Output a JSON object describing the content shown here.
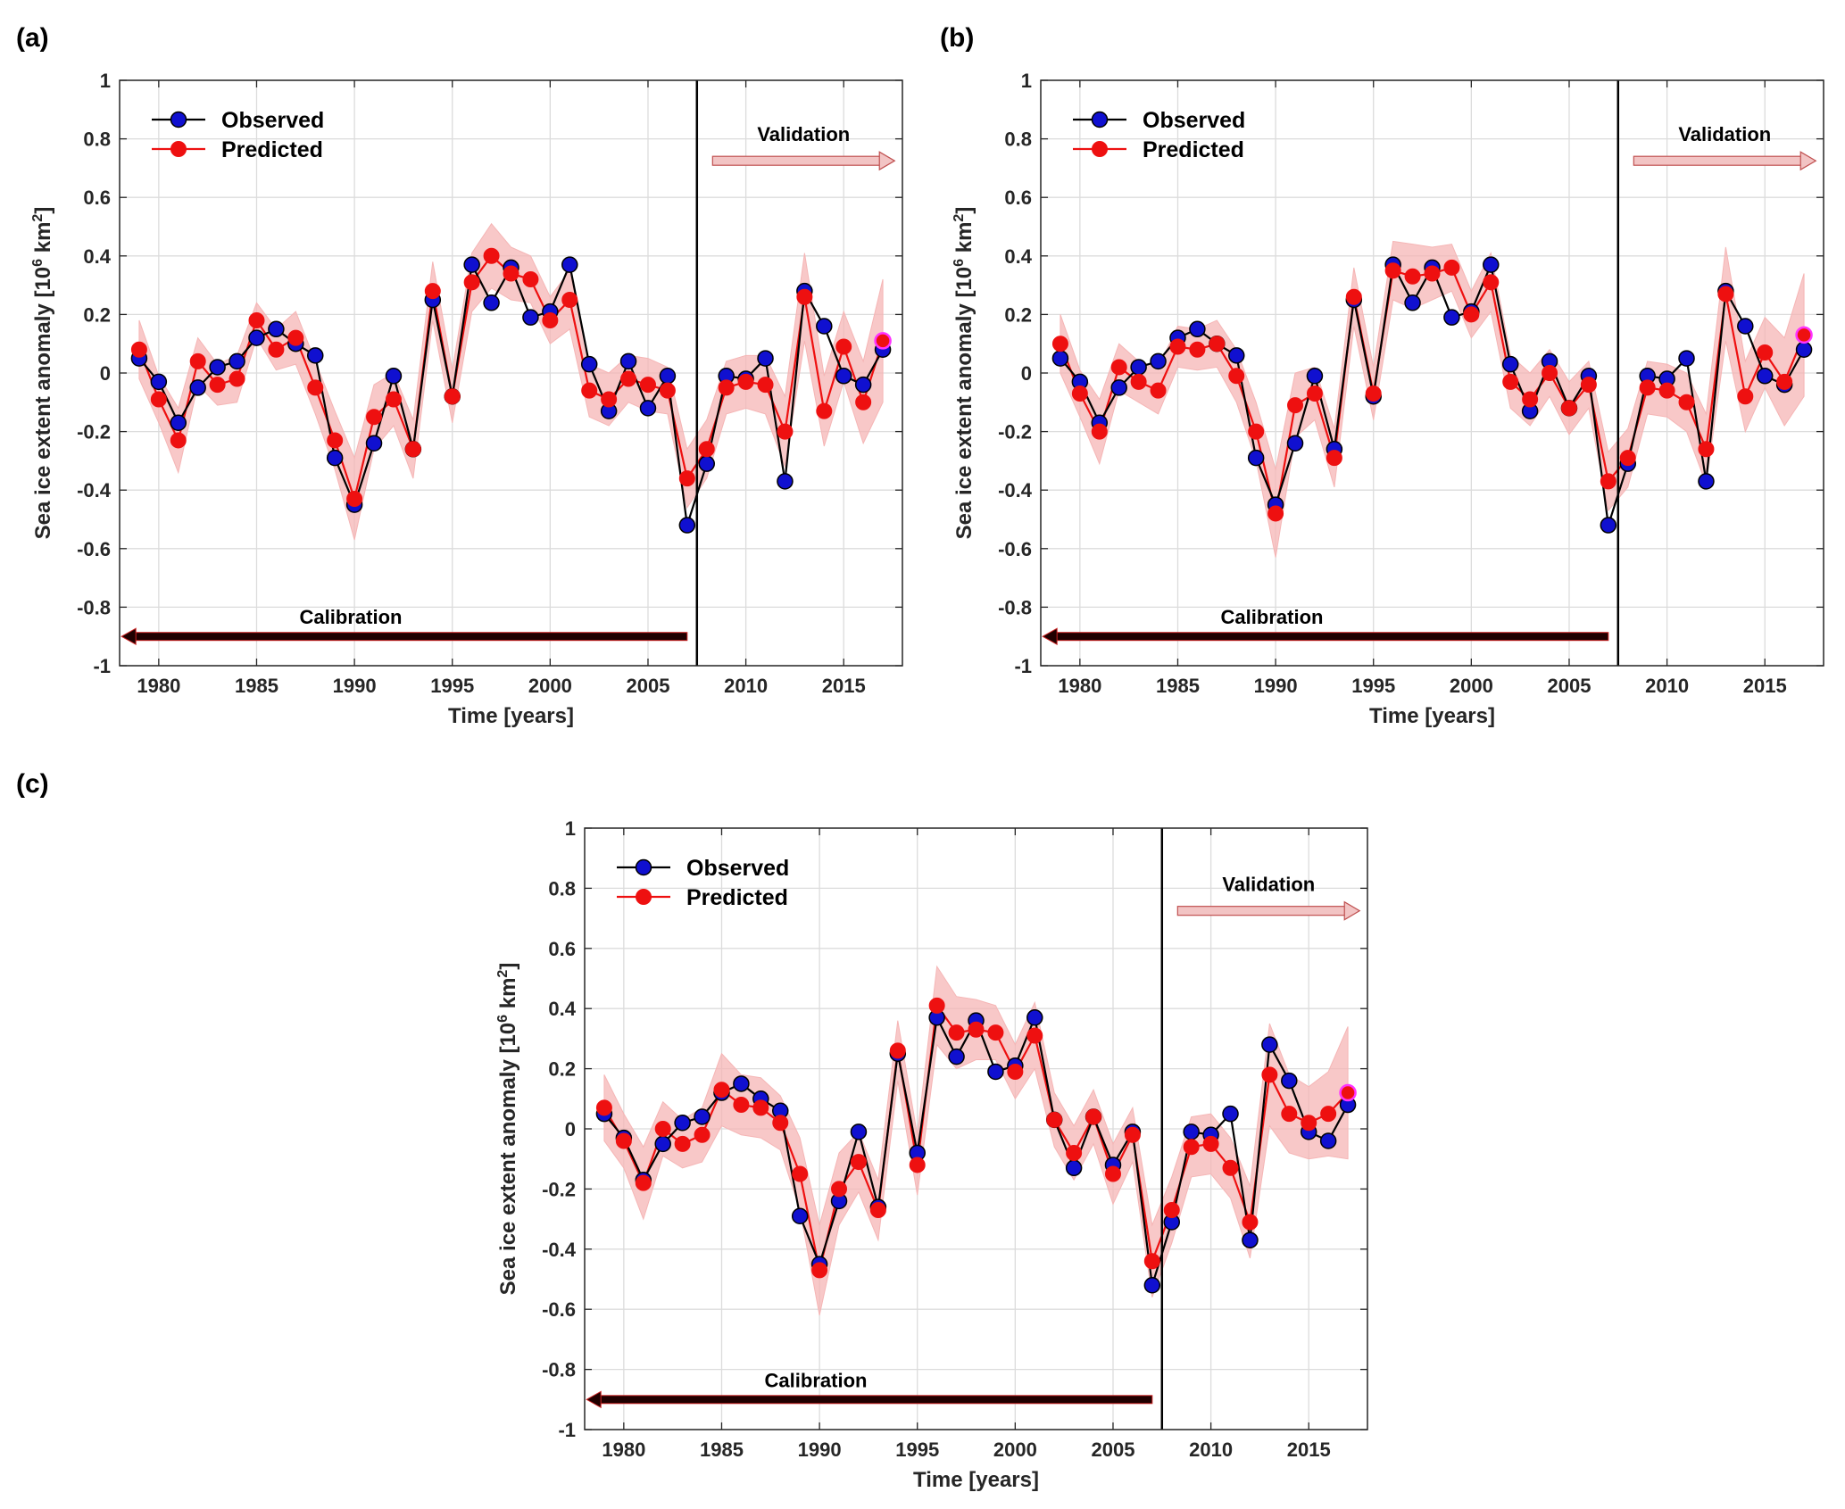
{
  "colors": {
    "observed_marker": "#1010d0",
    "observed_line": "#000000",
    "predicted": "#ee1010",
    "band": "#f5b5b5",
    "arrow_calibration": "#200000",
    "arrow_validation": "#f2c4c4",
    "last_point_ring": "#ff33ff"
  },
  "chart_data": [
    {
      "panel": "(a)",
      "type": "line",
      "xlabel": "Time [years]",
      "ylabel": "Sea ice extent anomaly [10",
      "ylabel_sup": "6",
      "ylabel_unit": " km",
      "ylabel_sup2": "2",
      "ylabel_end": "]",
      "xlim": [
        1978,
        2018
      ],
      "ylim": [
        -1,
        1
      ],
      "xticks": [
        1980,
        1985,
        1990,
        1995,
        2000,
        2005,
        2010,
        2015
      ],
      "yticks": [
        1,
        0.8,
        0.6,
        0.4,
        0.2,
        0,
        -0.2,
        -0.4,
        -0.6,
        -0.8,
        -1
      ],
      "ytick_labels": [
        "1",
        "0.8",
        "0.6",
        "0.4",
        "0.2",
        "0",
        "-0.2",
        "-0.4",
        "-0.6",
        "-0.8",
        "-1"
      ],
      "grid": true,
      "legend": {
        "position": "top-left",
        "observed": "Observed",
        "predicted": "Predicted"
      },
      "split_year": 2007.5,
      "calibration_label": "Calibration",
      "validation_label": "Validation",
      "x": [
        1979,
        1980,
        1981,
        1982,
        1983,
        1984,
        1985,
        1986,
        1987,
        1988,
        1989,
        1990,
        1991,
        1992,
        1993,
        1994,
        1995,
        1996,
        1997,
        1998,
        1999,
        2000,
        2001,
        2002,
        2003,
        2004,
        2005,
        2006,
        2007,
        2008,
        2009,
        2010,
        2011,
        2012,
        2013,
        2014,
        2015,
        2016,
        2017
      ],
      "series": [
        {
          "name": "Observed",
          "values": [
            0.05,
            -0.03,
            -0.17,
            -0.05,
            0.02,
            0.04,
            0.12,
            0.15,
            0.1,
            0.06,
            -0.29,
            -0.45,
            -0.24,
            -0.01,
            -0.26,
            0.25,
            -0.08,
            0.37,
            0.24,
            0.36,
            0.19,
            0.21,
            0.37,
            0.03,
            -0.13,
            0.04,
            -0.12,
            -0.01,
            -0.52,
            -0.31,
            -0.01,
            -0.02,
            0.05,
            -0.37,
            0.28,
            0.16,
            -0.01,
            -0.04,
            0.08
          ]
        },
        {
          "name": "Predicted",
          "values": [
            0.08,
            -0.09,
            -0.23,
            0.04,
            -0.04,
            -0.02,
            0.18,
            0.08,
            0.12,
            -0.05,
            -0.23,
            -0.43,
            -0.15,
            -0.09,
            -0.26,
            0.28,
            -0.08,
            0.31,
            0.4,
            0.34,
            0.32,
            0.18,
            0.25,
            -0.06,
            -0.09,
            -0.02,
            -0.04,
            -0.06,
            -0.36,
            -0.26,
            -0.05,
            -0.03,
            -0.04,
            -0.2,
            0.26,
            -0.13,
            0.09,
            -0.1,
            0.11
          ]
        }
      ],
      "band_halfwidth": [
        0.1,
        0.08,
        0.11,
        0.08,
        0.07,
        0.08,
        0.06,
        0.07,
        0.09,
        0.09,
        0.1,
        0.14,
        0.11,
        0.09,
        0.1,
        0.1,
        0.09,
        0.1,
        0.11,
        0.09,
        0.08,
        0.08,
        0.1,
        0.09,
        0.09,
        0.08,
        0.09,
        0.08,
        0.1,
        0.1,
        0.09,
        0.09,
        0.1,
        0.12,
        0.15,
        0.12,
        0.12,
        0.14,
        0.21
      ]
    },
    {
      "panel": "(b)",
      "type": "line",
      "xlabel": "Time [years]",
      "ylabel": "Sea ice extent anomaly [10",
      "ylabel_sup": "6",
      "ylabel_unit": " km",
      "ylabel_sup2": "2",
      "ylabel_end": "]",
      "xlim": [
        1978,
        2018
      ],
      "ylim": [
        -1,
        1
      ],
      "xticks": [
        1980,
        1985,
        1990,
        1995,
        2000,
        2005,
        2010,
        2015
      ],
      "yticks": [
        1,
        0.8,
        0.6,
        0.4,
        0.2,
        0,
        -0.2,
        -0.4,
        -0.6,
        -0.8,
        -1
      ],
      "ytick_labels": [
        "1",
        "0.8",
        "0.6",
        "0.4",
        "0.2",
        "0",
        "-0.2",
        "-0.4",
        "-0.6",
        "-0.8",
        "-1"
      ],
      "grid": true,
      "legend": {
        "position": "top-left",
        "observed": "Observed",
        "predicted": "Predicted"
      },
      "split_year": 2007.5,
      "calibration_label": "Calibration",
      "validation_label": "Validation",
      "x": [
        1979,
        1980,
        1981,
        1982,
        1983,
        1984,
        1985,
        1986,
        1987,
        1988,
        1989,
        1990,
        1991,
        1992,
        1993,
        1994,
        1995,
        1996,
        1997,
        1998,
        1999,
        2000,
        2001,
        2002,
        2003,
        2004,
        2005,
        2006,
        2007,
        2008,
        2009,
        2010,
        2011,
        2012,
        2013,
        2014,
        2015,
        2016,
        2017
      ],
      "series": [
        {
          "name": "Observed",
          "values": [
            0.05,
            -0.03,
            -0.17,
            -0.05,
            0.02,
            0.04,
            0.12,
            0.15,
            0.1,
            0.06,
            -0.29,
            -0.45,
            -0.24,
            -0.01,
            -0.26,
            0.25,
            -0.08,
            0.37,
            0.24,
            0.36,
            0.19,
            0.21,
            0.37,
            0.03,
            -0.13,
            0.04,
            -0.12,
            -0.01,
            -0.52,
            -0.31,
            -0.01,
            -0.02,
            0.05,
            -0.37,
            0.28,
            0.16,
            -0.01,
            -0.04,
            0.08
          ]
        },
        {
          "name": "Predicted",
          "values": [
            0.1,
            -0.07,
            -0.2,
            0.02,
            -0.03,
            -0.06,
            0.09,
            0.08,
            0.1,
            -0.01,
            -0.2,
            -0.48,
            -0.11,
            -0.07,
            -0.29,
            0.26,
            -0.07,
            0.35,
            0.33,
            0.34,
            0.36,
            0.2,
            0.31,
            -0.03,
            -0.09,
            0.0,
            -0.12,
            -0.04,
            -0.37,
            -0.29,
            -0.05,
            -0.06,
            -0.1,
            -0.26,
            0.27,
            -0.08,
            0.07,
            -0.03,
            0.13
          ]
        }
      ],
      "band_halfwidth": [
        0.1,
        0.08,
        0.11,
        0.08,
        0.07,
        0.08,
        0.07,
        0.07,
        0.08,
        0.09,
        0.1,
        0.15,
        0.11,
        0.09,
        0.1,
        0.1,
        0.09,
        0.1,
        0.11,
        0.09,
        0.08,
        0.08,
        0.1,
        0.09,
        0.09,
        0.08,
        0.09,
        0.08,
        0.1,
        0.1,
        0.09,
        0.09,
        0.1,
        0.12,
        0.16,
        0.12,
        0.12,
        0.15,
        0.21
      ]
    },
    {
      "panel": "(c)",
      "type": "line",
      "xlabel": "Time [years]",
      "ylabel": "Sea ice extent anomaly [10",
      "ylabel_sup": "6",
      "ylabel_unit": " km",
      "ylabel_sup2": "2",
      "ylabel_end": "]",
      "xlim": [
        1978,
        2018
      ],
      "ylim": [
        -1,
        1
      ],
      "xticks": [
        1980,
        1985,
        1990,
        1995,
        2000,
        2005,
        2010,
        2015
      ],
      "yticks": [
        1,
        0.8,
        0.6,
        0.4,
        0.2,
        0,
        -0.2,
        -0.4,
        -0.6,
        -0.8,
        -1
      ],
      "ytick_labels": [
        "1",
        "0.8",
        "0.6",
        "0.4",
        "0.2",
        "0",
        "-0.2",
        "-0.4",
        "-0.6",
        "-0.8",
        "-1"
      ],
      "grid": true,
      "legend": {
        "position": "top-left",
        "observed": "Observed",
        "predicted": "Predicted"
      },
      "split_year": 2007.5,
      "calibration_label": "Calibration",
      "validation_label": "Validation",
      "x": [
        1979,
        1980,
        1981,
        1982,
        1983,
        1984,
        1985,
        1986,
        1987,
        1988,
        1989,
        1990,
        1991,
        1992,
        1993,
        1994,
        1995,
        1996,
        1997,
        1998,
        1999,
        2000,
        2001,
        2002,
        2003,
        2004,
        2005,
        2006,
        2007,
        2008,
        2009,
        2010,
        2011,
        2012,
        2013,
        2014,
        2015,
        2016,
        2017
      ],
      "series": [
        {
          "name": "Observed",
          "values": [
            0.05,
            -0.03,
            -0.17,
            -0.05,
            0.02,
            0.04,
            0.12,
            0.15,
            0.1,
            0.06,
            -0.29,
            -0.45,
            -0.24,
            -0.01,
            -0.26,
            0.25,
            -0.08,
            0.37,
            0.24,
            0.36,
            0.19,
            0.21,
            0.37,
            0.03,
            -0.13,
            0.04,
            -0.12,
            -0.01,
            -0.52,
            -0.31,
            -0.01,
            -0.02,
            0.05,
            -0.37,
            0.28,
            0.16,
            -0.01,
            -0.04,
            0.08
          ]
        },
        {
          "name": "Predicted",
          "values": [
            0.07,
            -0.04,
            -0.18,
            0.0,
            -0.05,
            -0.02,
            0.13,
            0.08,
            0.07,
            0.02,
            -0.15,
            -0.47,
            -0.2,
            -0.11,
            -0.27,
            0.26,
            -0.12,
            0.41,
            0.32,
            0.33,
            0.32,
            0.19,
            0.31,
            0.03,
            -0.08,
            0.04,
            -0.15,
            -0.02,
            -0.44,
            -0.27,
            -0.06,
            -0.05,
            -0.13,
            -0.31,
            0.18,
            0.05,
            0.02,
            0.05,
            0.12
          ]
        }
      ],
      "band_halfwidth": [
        0.11,
        0.09,
        0.12,
        0.09,
        0.08,
        0.09,
        0.12,
        0.1,
        0.1,
        0.09,
        0.12,
        0.15,
        0.12,
        0.1,
        0.1,
        0.1,
        0.1,
        0.13,
        0.12,
        0.1,
        0.09,
        0.09,
        0.11,
        0.09,
        0.09,
        0.09,
        0.1,
        0.09,
        0.12,
        0.11,
        0.1,
        0.1,
        0.1,
        0.12,
        0.17,
        0.13,
        0.12,
        0.14,
        0.22
      ]
    }
  ]
}
